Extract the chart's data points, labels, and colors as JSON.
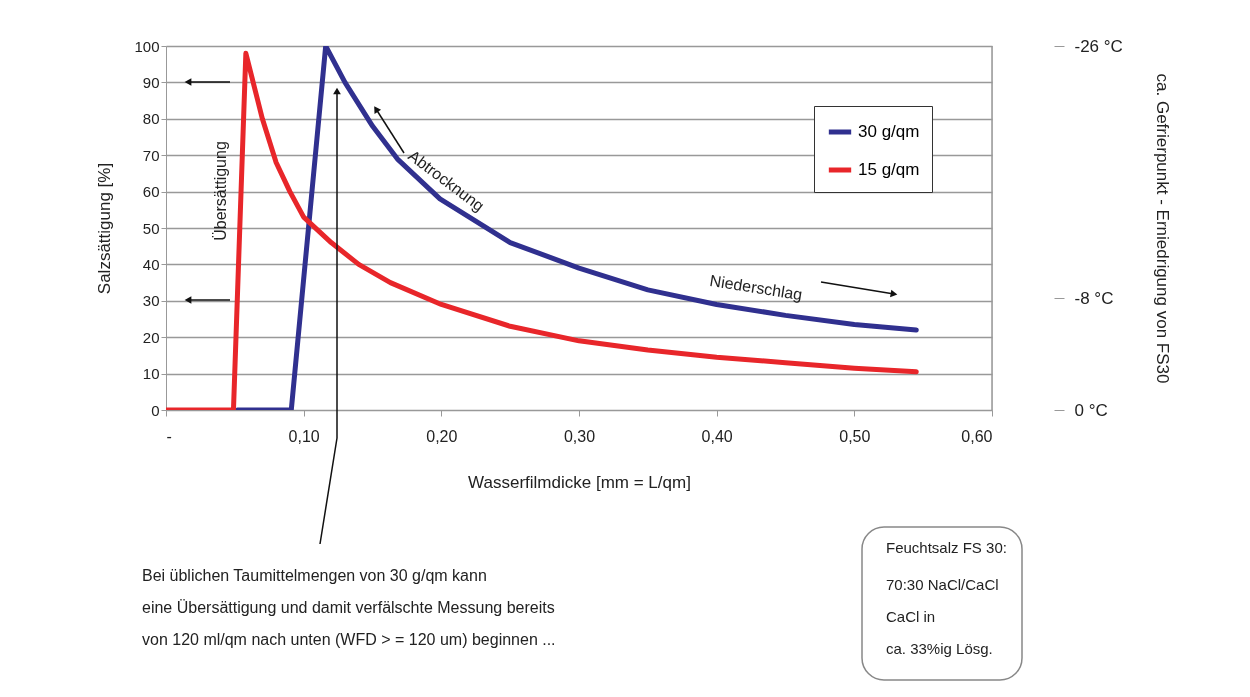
{
  "chart_data": {
    "type": "line",
    "xlabel": "Wasserfilmdicke [mm = L/qm]",
    "ylabel": "Salzsättigung [%]",
    "y2label": "ca. Gefrierpunkt - Erniedrigung von FS30",
    "xlim": [
      0,
      0.6
    ],
    "xticks": [
      {
        "value": 0,
        "label": "-"
      },
      {
        "value": 0.1,
        "label": "0,10"
      },
      {
        "value": 0.2,
        "label": "0,20"
      },
      {
        "value": 0.3,
        "label": "0,30"
      },
      {
        "value": 0.4,
        "label": "0,40"
      },
      {
        "value": 0.5,
        "label": "0,50"
      },
      {
        "value": 0.6,
        "label": "0,60"
      }
    ],
    "ylim": [
      0,
      100
    ],
    "yticks": [
      0,
      10,
      20,
      30,
      40,
      50,
      60,
      70,
      80,
      90,
      100
    ],
    "y2lim": [
      0,
      -26
    ],
    "y2ticks": [
      {
        "value": 0,
        "label": "0 °C"
      },
      {
        "value": -8,
        "label": "-8 °C"
      },
      {
        "value": -26,
        "label": "-26 °C"
      }
    ],
    "grid": "y",
    "legend": "top right",
    "marker": "none",
    "line_style": "solid",
    "series": [
      {
        "name": "30 g/qm",
        "color": "#30308f",
        "x": [
          0.052,
          0.091,
          0.105,
          0.116,
          0.13,
          0.15,
          0.168,
          0.199,
          0.25,
          0.3,
          0.35,
          0.4,
          0.45,
          0.5,
          0.545
        ],
        "values": [
          0,
          0,
          56,
          100,
          90,
          78,
          69,
          58,
          46,
          39,
          33,
          29,
          26,
          23.5,
          22
        ]
      },
      {
        "name": "15 g/qm",
        "color": "#e8262a",
        "x": [
          0,
          0.049,
          0.058,
          0.07,
          0.08,
          0.09,
          0.1,
          0.12,
          0.14,
          0.163,
          0.2,
          0.25,
          0.3,
          0.35,
          0.4,
          0.45,
          0.5,
          0.545
        ],
        "values": [
          0,
          0,
          98,
          80,
          68,
          60,
          53,
          46,
          40,
          35,
          29,
          23,
          19,
          16.5,
          14.5,
          13,
          11.5,
          10.5
        ]
      }
    ],
    "annotations": [
      "Übersättigung",
      "Abtrocknung",
      "Niederschlag",
      "Bei üblichen Taumittelmengen von 30 g/qm kann\neine Übersättigung und damit verfälschte Messung bereits\nvon 120 ml/qm nach unten (WFD > = 120 um) beginnen ...",
      "Feuchtsalz FS 30:",
      "70:30 NaCl/CaCl\nCaCl in\nca. 33%ig Lösg."
    ]
  }
}
